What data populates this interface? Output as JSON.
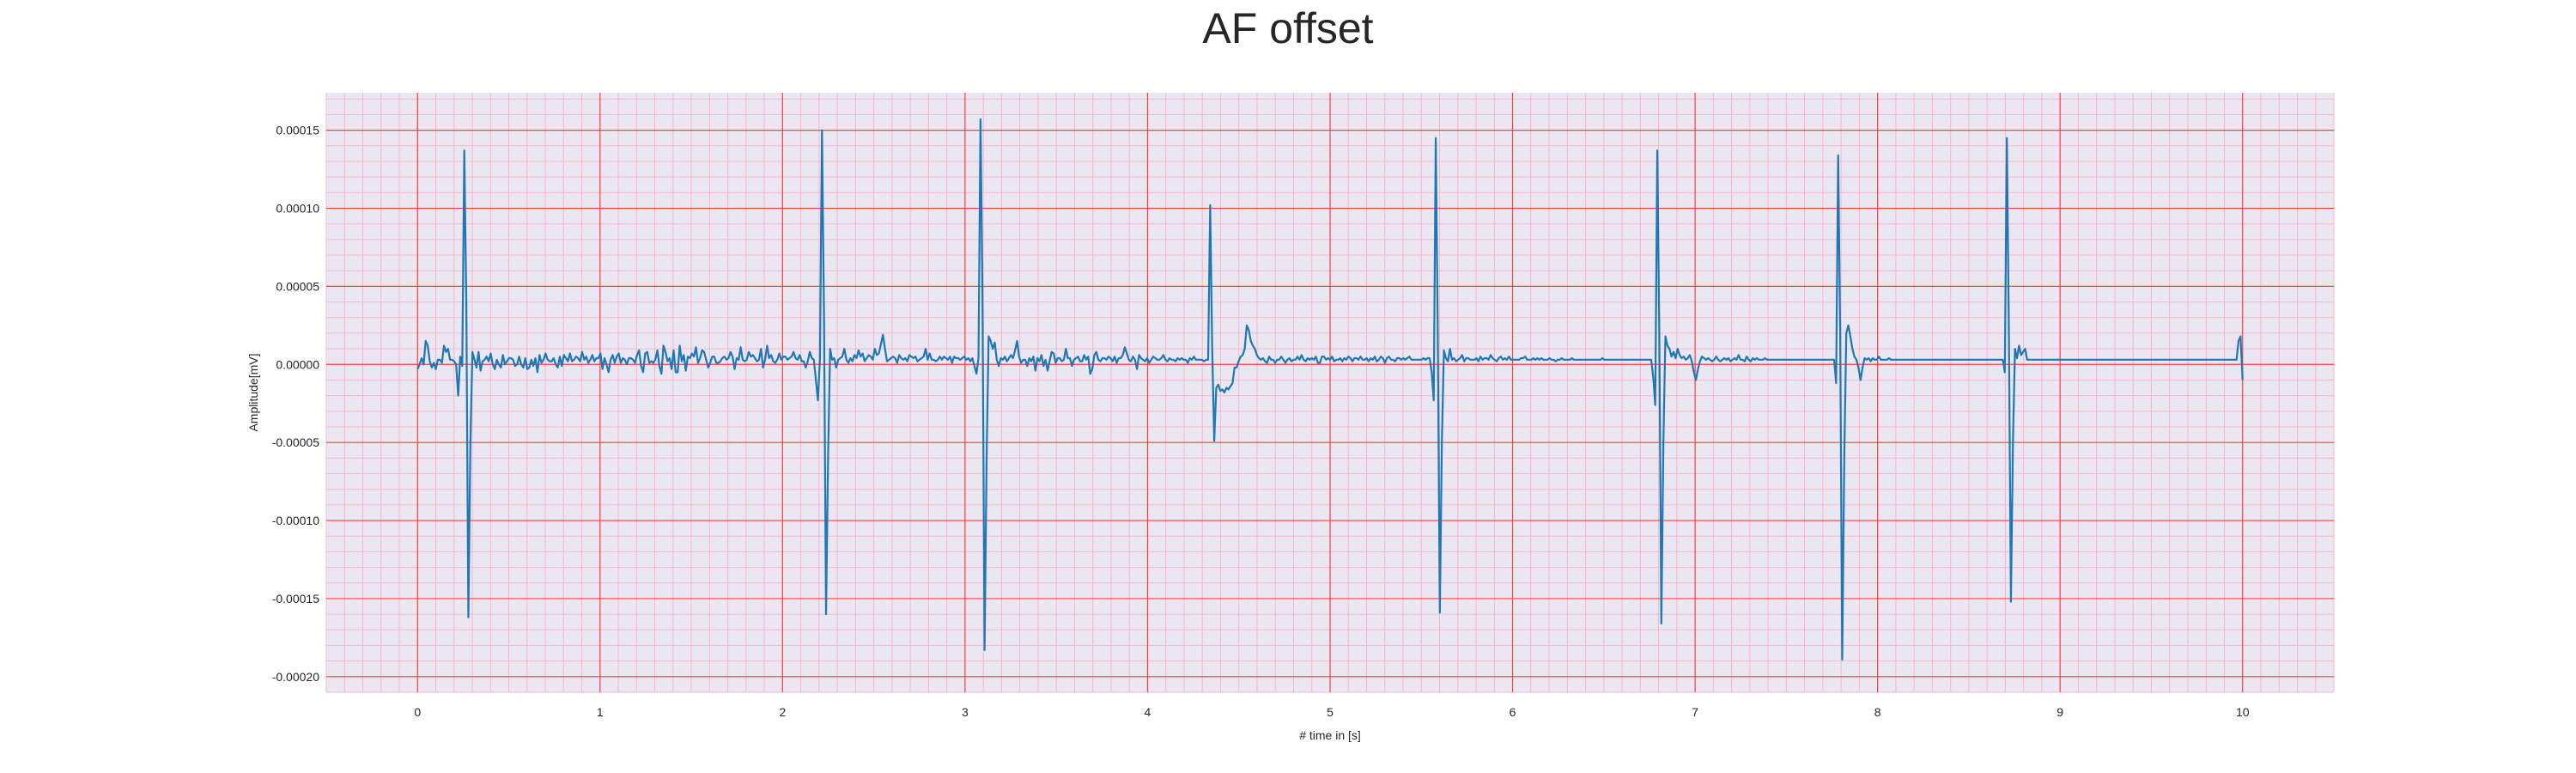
{
  "chart_data": {
    "type": "line",
    "title": "AF offset",
    "xlabel": "# time in [s]",
    "ylabel": "Amplitude[mV]",
    "xlim": [
      -0.5,
      10.5
    ],
    "ylim": [
      -0.00021,
      0.000174
    ],
    "x_ticks": [
      0,
      1,
      2,
      3,
      4,
      5,
      6,
      7,
      8,
      9,
      10
    ],
    "y_ticks": [
      0.00015,
      0.0001,
      5e-05,
      0.0,
      -5e-05,
      -0.0001,
      -0.00015,
      -0.0002
    ],
    "y_tick_labels": [
      "0.00015",
      "0.00010",
      "0.00005",
      "0.00000",
      "-0.00005",
      "-0.00010",
      "-0.00015",
      "-0.00020"
    ],
    "grid": true,
    "minor_grid": true,
    "colors": {
      "line": "#1f77b4",
      "background": "#eae7f2",
      "major_grid": "#ff4040",
      "minor_grid": "#f4b8c8"
    },
    "sample_interval_s": 0.01,
    "series": [
      {
        "name": "",
        "x_start": 0.0,
        "values": [
          -3e-06,
          0.0,
          4e-06,
          0.0,
          1.5e-05,
          1.2e-05,
          2e-06,
          -2e-06,
          1e-06,
          -3e-06,
          3e-06,
          3e-06,
          1e-06,
          1.2e-05,
          8e-06,
          1e-05,
          3e-06,
          3e-06,
          2e-06,
          0.0,
          -2e-05,
          5e-06,
          -1e-06,
          0.000137,
          4e-05,
          -0.000162,
          -5e-05,
          8e-06,
          3e-06,
          -2e-06,
          8e-06,
          -4e-06,
          2e-06,
          3e-06,
          5e-06,
          2e-06,
          7e-06,
          0.0,
          -3e-06,
          3e-06,
          0.0,
          -2e-06,
          6e-06,
          0.0,
          2e-06,
          4e-06,
          4e-06,
          3e-06,
          -1e-06,
          0.0,
          5e-06,
          0.0,
          -2e-06,
          4e-06,
          -3e-06,
          -2e-06,
          3e-06,
          -1e-06,
          4e-06,
          -5e-06,
          6e-06,
          1e-06,
          3e-06,
          7e-06,
          3e-06,
          2e-06,
          2e-06,
          4e-06,
          0.0,
          -2e-06,
          5e-06,
          -1e-06,
          6e-06,
          4e-06,
          2e-06,
          7e-06,
          2e-06,
          3e-06,
          5e-06,
          4e-06,
          2e-06,
          8e-06,
          3e-06,
          5e-06,
          1e-06,
          3e-06,
          6e-06,
          2e-06,
          4e-06,
          4e-06,
          7e-06,
          -3e-06,
          4e-06,
          0.0,
          -5e-06,
          3e-06,
          6e-06,
          1e-06,
          5e-06,
          7e-06,
          1e-06,
          4e-06,
          3e-06,
          0.0,
          4e-06,
          4e-06,
          3e-06,
          1e-06,
          6e-06,
          9e-06,
          -1e-06,
          -5e-06,
          7e-06,
          8e-06,
          1e-06,
          2e-06,
          1e-06,
          3e-06,
          9e-06,
          -1e-06,
          -6e-06,
          1.2e-05,
          8e-06,
          2e-06,
          4e-06,
          -3e-06,
          9e-06,
          -5e-06,
          -5e-06,
          1.2e-05,
          2e-06,
          6e-06,
          -4e-06,
          5e-06,
          4e-06,
          7e-06,
          5e-06,
          1.1e-05,
          1e-06,
          4e-06,
          9e-06,
          8e-06,
          3e-06,
          -2e-06,
          1e-06,
          5e-06,
          5e-06,
          1e-06,
          1e-06,
          2e-06,
          4e-06,
          5e-06,
          3e-06,
          4e-06,
          8e-06,
          5e-06,
          -3e-06,
          4e-06,
          3e-06,
          1.1e-05,
          3e-06,
          2e-06,
          3e-06,
          8e-06,
          5e-06,
          6e-06,
          4e-06,
          2e-06,
          3e-06,
          1e-05,
          -2e-06,
          3e-06,
          1.2e-05,
          4e-06,
          6e-06,
          2e-06,
          1e-06,
          3e-06,
          7e-06,
          3e-06,
          5e-06,
          5e-06,
          3e-06,
          4e-06,
          5e-06,
          8e-06,
          4e-06,
          3e-06,
          6e-06,
          2e-06,
          2e-06,
          -2e-06,
          2e-06,
          8e-06,
          4e-06,
          3e-06,
          -1e-05,
          -2.3e-05,
          4e-06,
          0.00015,
          3e-05,
          -0.00016,
          -6e-05,
          1e-05,
          3e-06,
          4e-06,
          -2e-06,
          3e-06,
          4e-06,
          5e-06,
          1e-05,
          3e-06,
          1e-06,
          4e-06,
          2e-06,
          6e-06,
          4e-06,
          9e-06,
          5e-06,
          7e-06,
          2e-06,
          4e-06,
          6e-06,
          5e-06,
          3e-06,
          1e-05,
          6e-06,
          7e-06,
          1.3e-05,
          1.9e-05,
          1e-05,
          2e-06,
          3e-06,
          4e-06,
          5e-06,
          4e-06,
          1e-06,
          6e-06,
          4e-06,
          3e-06,
          4e-06,
          2e-06,
          6e-06,
          5e-06,
          4e-06,
          5e-06,
          2e-06,
          3e-06,
          4e-06,
          5e-06,
          1e-05,
          3e-06,
          7e-06,
          3e-06,
          3e-06,
          2e-06,
          3e-06,
          5e-06,
          3e-06,
          5e-06,
          4e-06,
          3e-06,
          5e-06,
          1e-06,
          5e-06,
          4e-06,
          4e-06,
          3e-06,
          4e-06,
          5e-06,
          3e-06,
          4e-06,
          2e-06,
          4e-06,
          -1e-06,
          -6e-06,
          4e-06,
          0.000157,
          4e-05,
          -0.000183,
          -6e-05,
          1.8e-05,
          1.5e-05,
          1e-05,
          1.4e-05,
          3e-06,
          -1e-06,
          4e-06,
          3e-06,
          5e-06,
          2e-06,
          4e-06,
          6e-06,
          4e-06,
          9e-06,
          1.5e-05,
          5e-06,
          1e-06,
          3e-06,
          3e-06,
          -1e-06,
          4e-06,
          2e-06,
          5e-06,
          -4e-06,
          4e-06,
          2e-06,
          6e-06,
          -1e-06,
          3e-06,
          -4e-06,
          2e-06,
          8e-06,
          7e-06,
          1e-06,
          4e-06,
          4e-06,
          2e-06,
          3e-06,
          1e-05,
          4e-06,
          4e-06,
          -1e-06,
          3e-06,
          4e-06,
          5e-06,
          2e-06,
          2e-06,
          6e-06,
          3e-06,
          5e-06,
          -6e-06,
          -3e-06,
          6e-06,
          8e-06,
          3e-06,
          2e-06,
          4e-06,
          4e-06,
          3e-06,
          5e-06,
          4e-06,
          2e-06,
          5e-06,
          1e-06,
          4e-06,
          4e-06,
          6e-06,
          1.1e-05,
          7e-06,
          3e-06,
          2e-06,
          5e-06,
          3e-06,
          -3e-06,
          6e-06,
          4e-06,
          3e-06,
          2e-06,
          4e-06,
          1e-06,
          3e-06,
          5e-06,
          4e-06,
          3e-06,
          3e-06,
          4e-06,
          6e-06,
          3e-06,
          2e-06,
          4e-06,
          3e-06,
          3e-06,
          2e-06,
          4e-06,
          3e-06,
          4e-06,
          3e-06,
          3e-06,
          1e-06,
          4e-06,
          3e-06,
          5e-06,
          3e-06,
          3e-06,
          3e-06,
          3e-06,
          2e-06,
          3e-06,
          3e-06,
          0.000102,
          1e-05,
          -4.9e-05,
          -1.5e-05,
          -1.3e-05,
          -1.7e-05,
          -1.6e-05,
          -1.8e-05,
          -1.5e-05,
          -1.6e-05,
          -1.4e-05,
          -1.2e-05,
          -2e-06,
          -2e-06,
          2e-06,
          5e-06,
          6e-06,
          1e-05,
          2.5e-05,
          2.2e-05,
          1.5e-05,
          1.2e-05,
          1e-05,
          6e-06,
          4e-06,
          3e-06,
          4e-06,
          2e-06,
          1e-06,
          5e-06,
          3e-06,
          3e-06,
          1e-06,
          3e-06,
          3e-06,
          5e-06,
          3e-06,
          1e-06,
          3e-06,
          4e-06,
          2e-06,
          3e-06,
          3e-06,
          5e-06,
          3e-06,
          6e-06,
          3e-06,
          2e-06,
          4e-06,
          3e-06,
          4e-06,
          3e-06,
          5e-06,
          1e-06,
          1e-06,
          5e-06,
          5e-06,
          3e-06,
          4e-06,
          3e-06,
          5e-06,
          2e-06,
          3e-06,
          3e-06,
          4e-06,
          2e-06,
          4e-06,
          3e-06,
          5e-06,
          4e-06,
          2e-06,
          4e-06,
          4e-06,
          3e-06,
          5e-06,
          3e-06,
          3e-06,
          4e-06,
          2e-06,
          4e-06,
          3e-06,
          5e-06,
          2e-06,
          3e-06,
          5e-06,
          4e-06,
          1e-06,
          4e-06,
          5e-06,
          3e-06,
          3e-06,
          2e-06,
          4e-06,
          4e-06,
          3e-06,
          4e-06,
          3e-06,
          4e-06,
          5e-06,
          3e-06,
          3e-06,
          3e-06,
          3e-06,
          3e-06,
          3e-06,
          4e-06,
          3e-06,
          4e-06,
          4e-06,
          -5e-06,
          -2.3e-05,
          0.000145,
          2e-05,
          -0.000159,
          -5e-05,
          9e-06,
          4e-06,
          2e-06,
          1e-05,
          3e-06,
          4e-06,
          2e-06,
          3e-06,
          4e-06,
          6e-06,
          2e-06,
          4e-06,
          4e-06,
          3e-06,
          3e-06,
          3e-06,
          4e-06,
          2e-06,
          5e-06,
          3e-06,
          4e-06,
          4e-06,
          3e-06,
          6e-06,
          4e-06,
          3e-06,
          2e-06,
          4e-06,
          5e-06,
          3e-06,
          4e-06,
          3e-06,
          5e-06,
          3e-06,
          3e-06,
          3e-06,
          3e-06,
          3e-06,
          4e-06,
          4e-06,
          5e-06,
          3e-06,
          3e-06,
          3e-06,
          4e-06,
          3e-06,
          4e-06,
          3e-06,
          4e-06,
          3e-06,
          3e-06,
          3e-06,
          4e-06,
          3e-06,
          3e-06,
          2e-06,
          3e-06,
          3e-06,
          4e-06,
          3e-06,
          3e-06,
          3e-06,
          3e-06,
          4e-06,
          3e-06,
          3e-06,
          3e-06,
          3e-06,
          3e-06,
          3e-06,
          3e-06,
          3e-06,
          3e-06,
          3e-06,
          3e-06,
          3e-06,
          3e-06,
          3e-06,
          4e-06,
          3e-06,
          3e-06,
          3e-06,
          3e-06,
          3e-06,
          3e-06,
          3e-06,
          3e-06,
          3e-06,
          3e-06,
          3e-06,
          3e-06,
          3e-06,
          3e-06,
          3e-06,
          3e-06,
          3e-06,
          3e-06,
          3e-06,
          3e-06,
          3e-06,
          3e-06,
          3e-06,
          3e-06,
          -8e-06,
          -2.6e-05,
          0.000137,
          2e-05,
          -0.000166,
          -5e-05,
          1.8e-05,
          1.2e-05,
          1e-05,
          5e-06,
          8e-06,
          4e-06,
          1e-05,
          6e-06,
          4e-06,
          5e-06,
          3e-06,
          4e-06,
          6e-06,
          2e-06,
          -5e-06,
          -1e-05,
          -3e-06,
          2e-06,
          5e-06,
          4e-06,
          3e-06,
          4e-06,
          3e-06,
          2e-06,
          3e-06,
          5e-06,
          3e-06,
          2e-06,
          3e-06,
          4e-06,
          3e-06,
          4e-06,
          2e-06,
          3e-06,
          4e-06,
          3e-06,
          6e-06,
          3e-06,
          3e-06,
          2e-06,
          5e-06,
          3e-06,
          2e-06,
          4e-06,
          3e-06,
          4e-06,
          3e-06,
          3e-06,
          3e-06,
          4e-06,
          3e-06,
          3e-06,
          3e-06,
          3e-06,
          3e-06,
          3e-06,
          3e-06,
          3e-06,
          3e-06,
          3e-06,
          3e-06,
          3e-06,
          3e-06,
          3e-06,
          3e-06,
          3e-06,
          3e-06,
          3e-06,
          3e-06,
          3e-06,
          3e-06,
          3e-06,
          3e-06,
          3e-06,
          3e-06,
          3e-06,
          3e-06,
          3e-06,
          3e-06,
          3e-06,
          3e-06,
          3e-06,
          3e-06,
          3e-06,
          -1.2e-05,
          0.000134,
          2e-05,
          -0.000189,
          -6e-05,
          2e-05,
          2.5e-05,
          1.8e-05,
          1e-05,
          5e-06,
          3e-06,
          -2e-06,
          -1e-05,
          -2e-06,
          4e-06,
          3e-06,
          4e-06,
          2e-06,
          4e-06,
          3e-06,
          3e-06,
          5e-06,
          3e-06,
          3e-06,
          3e-06,
          3e-06,
          4e-06,
          3e-06,
          3e-06,
          3e-06,
          3e-06,
          3e-06,
          3e-06,
          3e-06,
          3e-06,
          3e-06,
          3e-06,
          3e-06,
          3e-06,
          3e-06,
          3e-06,
          3e-06,
          3e-06,
          3e-06,
          3e-06,
          3e-06,
          3e-06,
          3e-06,
          3e-06,
          3e-06,
          3e-06,
          3e-06,
          3e-06,
          3e-06,
          3e-06,
          3e-06,
          3e-06,
          3e-06,
          3e-06,
          3e-06,
          3e-06,
          3e-06,
          3e-06,
          3e-06,
          3e-06,
          3e-06,
          3e-06,
          3e-06,
          3e-06,
          3e-06,
          3e-06,
          3e-06,
          3e-06,
          3e-06,
          3e-06,
          3e-06,
          3e-06,
          3e-06,
          3e-06,
          3e-06,
          3e-06,
          3e-06,
          3e-06,
          -5e-06,
          0.000145,
          2e-05,
          -0.000152,
          -5e-05,
          1e-05,
          4e-06,
          1.2e-05,
          6e-06,
          8e-06,
          1e-05,
          3e-06,
          3e-06,
          3e-06,
          3e-06,
          3e-06,
          3e-06,
          3e-06,
          3e-06,
          3e-06,
          3e-06,
          3e-06,
          3e-06,
          3e-06,
          3e-06,
          3e-06,
          3e-06,
          3e-06,
          3e-06,
          3e-06,
          3e-06,
          3e-06,
          3e-06,
          3e-06,
          3e-06,
          3e-06,
          3e-06,
          3e-06,
          3e-06,
          3e-06,
          3e-06,
          3e-06,
          3e-06,
          3e-06,
          3e-06,
          3e-06,
          3e-06,
          3e-06,
          3e-06,
          3e-06,
          3e-06,
          3e-06,
          3e-06,
          3e-06,
          3e-06,
          3e-06,
          3e-06,
          3e-06,
          3e-06,
          3e-06,
          3e-06,
          3e-06,
          3e-06,
          3e-06,
          3e-06,
          3e-06,
          3e-06,
          3e-06,
          3e-06,
          3e-06,
          3e-06,
          3e-06,
          3e-06,
          3e-06,
          3e-06,
          3e-06,
          3e-06,
          3e-06,
          3e-06,
          3e-06,
          3e-06,
          3e-06,
          3e-06,
          3e-06,
          3e-06,
          3e-06,
          3e-06,
          3e-06,
          3e-06,
          3e-06,
          3e-06,
          3e-06,
          3e-06,
          3e-06,
          3e-06,
          3e-06,
          3e-06,
          3e-06,
          3e-06,
          3e-06,
          3e-06,
          3e-06,
          3e-06,
          3e-06,
          3e-06,
          3e-06,
          3e-06,
          3e-06,
          3e-06,
          3e-06,
          3e-06,
          3e-06,
          3e-06,
          3e-06,
          3e-06,
          1.5e-05,
          1.8e-05,
          -1e-05
        ]
      }
    ]
  }
}
